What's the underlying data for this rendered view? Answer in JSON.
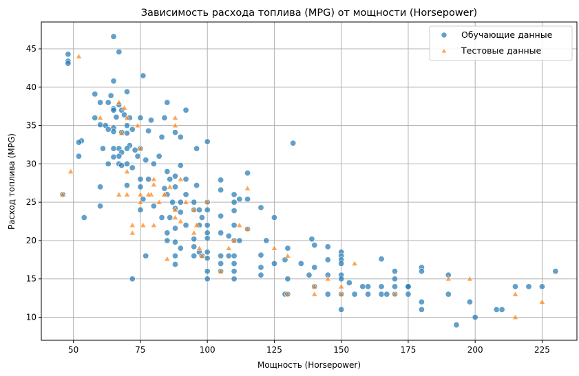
{
  "chart_data": {
    "type": "scatter",
    "title": "Зависимость расхода топлива (MPG) от мощности (Horsepower)",
    "xlabel": "Мощность (Horsepower)",
    "ylabel": "Расход топлива (MPG)",
    "xlim": [
      38,
      238
    ],
    "ylim": [
      7,
      48.5
    ],
    "xticks": [
      50,
      75,
      100,
      125,
      150,
      175,
      200,
      225
    ],
    "yticks": [
      10,
      15,
      20,
      25,
      30,
      35,
      40,
      45
    ],
    "grid": true,
    "legend": {
      "position": "top-right"
    },
    "series": [
      {
        "name": "Обучающие данные",
        "marker": "circle",
        "color": "#1f77b4",
        "points": [
          [
            48,
            44.3
          ],
          [
            48,
            43.4
          ],
          [
            48,
            43.1
          ],
          [
            65,
            46.6
          ],
          [
            67,
            44.6
          ],
          [
            76,
            41.5
          ],
          [
            65,
            40.8
          ],
          [
            70,
            39.4
          ],
          [
            58,
            39.1
          ],
          [
            64,
            38.9
          ],
          [
            63,
            38.0
          ],
          [
            60,
            38.0
          ],
          [
            85,
            38.0
          ],
          [
            67,
            37.7
          ],
          [
            68,
            37.0
          ],
          [
            92,
            37.0
          ],
          [
            65,
            37.2
          ],
          [
            65,
            37.0
          ],
          [
            71,
            36.0
          ],
          [
            58,
            36.0
          ],
          [
            69,
            36.4
          ],
          [
            75,
            36.0
          ],
          [
            84,
            36.0
          ],
          [
            66,
            36.1
          ],
          [
            62,
            35.0
          ],
          [
            70,
            35.0
          ],
          [
            79,
            35.7
          ],
          [
            65,
            34.7
          ],
          [
            60,
            35.1
          ],
          [
            68,
            34.1
          ],
          [
            72,
            34.5
          ],
          [
            78,
            34.3
          ],
          [
            88,
            34.1
          ],
          [
            63,
            34.5
          ],
          [
            65,
            34.2
          ],
          [
            70,
            34.0
          ],
          [
            83,
            33.5
          ],
          [
            90,
            33.5
          ],
          [
            53,
            33.0
          ],
          [
            52,
            32.8
          ],
          [
            71,
            32.4
          ],
          [
            100,
            32.9
          ],
          [
            75,
            32.0
          ],
          [
            70,
            32.0
          ],
          [
            67,
            32.0
          ],
          [
            61,
            32.0
          ],
          [
            65,
            32.0
          ],
          [
            68,
            31.5
          ],
          [
            73,
            31.8
          ],
          [
            96,
            32.0
          ],
          [
            67,
            31.0
          ],
          [
            74,
            31.0
          ],
          [
            82,
            31.0
          ],
          [
            52,
            31.0
          ],
          [
            65,
            30.9
          ],
          [
            67,
            30.0
          ],
          [
            63,
            30.0
          ],
          [
            70,
            30.0
          ],
          [
            77,
            30.5
          ],
          [
            80,
            30.0
          ],
          [
            68,
            29.8
          ],
          [
            85,
            29.0
          ],
          [
            90,
            29.8
          ],
          [
            72,
            29.5
          ],
          [
            75,
            28.0
          ],
          [
            88,
            28.4
          ],
          [
            78,
            28.0
          ],
          [
            86,
            28.0
          ],
          [
            92,
            28.0
          ],
          [
            105,
            27.9
          ],
          [
            115,
            28.8
          ],
          [
            60,
            27.0
          ],
          [
            70,
            27.2
          ],
          [
            75,
            27.0
          ],
          [
            84,
            26.8
          ],
          [
            88,
            27.0
          ],
          [
            96,
            27.2
          ],
          [
            105,
            26.6
          ],
          [
            110,
            26.0
          ],
          [
            112,
            25.4
          ],
          [
            92,
            26.0
          ],
          [
            85,
            26.0
          ],
          [
            76,
            25.4
          ],
          [
            90,
            25.0
          ],
          [
            87,
            25.0
          ],
          [
            95,
            25.0
          ],
          [
            100,
            25.0
          ],
          [
            110,
            25.0
          ],
          [
            115,
            25.4
          ],
          [
            80,
            24.5
          ],
          [
            60,
            24.5
          ],
          [
            75,
            24.0
          ],
          [
            88,
            24.2
          ],
          [
            95,
            24.0
          ],
          [
            97,
            24.0
          ],
          [
            100,
            24.0
          ],
          [
            105,
            23.2
          ],
          [
            110,
            23.9
          ],
          [
            120,
            24.3
          ],
          [
            125,
            23.0
          ],
          [
            54,
            23.0
          ],
          [
            83,
            23.0
          ],
          [
            86,
            23.0
          ],
          [
            90,
            23.7
          ],
          [
            98,
            23.0
          ],
          [
            100,
            22.0
          ],
          [
            110,
            22.0
          ],
          [
            115,
            21.5
          ],
          [
            85,
            21.0
          ],
          [
            88,
            21.6
          ],
          [
            92,
            22.0
          ],
          [
            97,
            22.0
          ],
          [
            100,
            21.0
          ],
          [
            105,
            21.0
          ],
          [
            108,
            20.6
          ],
          [
            95,
            20.2
          ],
          [
            100,
            20.3
          ],
          [
            110,
            20.0
          ],
          [
            112,
            20.0
          ],
          [
            122,
            20.0
          ],
          [
            85,
            20.0
          ],
          [
            88,
            19.8
          ],
          [
            90,
            19.0
          ],
          [
            95,
            19.2
          ],
          [
            97,
            18.5
          ],
          [
            100,
            18.5
          ],
          [
            105,
            18.0
          ],
          [
            108,
            18.0
          ],
          [
            110,
            18.0
          ],
          [
            120,
            18.1
          ],
          [
            130,
            19.0
          ],
          [
            139,
            20.2
          ],
          [
            140,
            19.4
          ],
          [
            145,
            19.2
          ],
          [
            150,
            18.5
          ],
          [
            150,
            18.0
          ],
          [
            77,
            18.0
          ],
          [
            88,
            18.0
          ],
          [
            95,
            18.0
          ],
          [
            98,
            18.0
          ],
          [
            100,
            17.7
          ],
          [
            105,
            17.0
          ],
          [
            110,
            17.0
          ],
          [
            120,
            16.5
          ],
          [
            125,
            17.0
          ],
          [
            129,
            17.5
          ],
          [
            135,
            17.0
          ],
          [
            140,
            16.5
          ],
          [
            145,
            17.5
          ],
          [
            150,
            17.5
          ],
          [
            150,
            17.0
          ],
          [
            165,
            17.6
          ],
          [
            88,
            16.9
          ],
          [
            100,
            16.0
          ],
          [
            105,
            16.0
          ],
          [
            110,
            16.0
          ],
          [
            120,
            15.5
          ],
          [
            130,
            15.0
          ],
          [
            138,
            15.5
          ],
          [
            145,
            15.5
          ],
          [
            150,
            15.5
          ],
          [
            150,
            15.0
          ],
          [
            153,
            14.5
          ],
          [
            158,
            14.0
          ],
          [
            160,
            14.0
          ],
          [
            165,
            14.0
          ],
          [
            170,
            15.0
          ],
          [
            175,
            14.0
          ],
          [
            180,
            16.5
          ],
          [
            180,
            16.0
          ],
          [
            190,
            15.5
          ],
          [
            100,
            15.0
          ],
          [
            110,
            15.0
          ],
          [
            72,
            15.0
          ],
          [
            140,
            14.0
          ],
          [
            145,
            13.0
          ],
          [
            150,
            13.0
          ],
          [
            155,
            13.0
          ],
          [
            160,
            13.0
          ],
          [
            165,
            13.0
          ],
          [
            167,
            13.0
          ],
          [
            170,
            14.0
          ],
          [
            170,
            16.0
          ],
          [
            170,
            13.0
          ],
          [
            175,
            13.0
          ],
          [
            175,
            14.0
          ],
          [
            180,
            12.0
          ],
          [
            180,
            11.0
          ],
          [
            190,
            13.0
          ],
          [
            193,
            9.0
          ],
          [
            198,
            12.0
          ],
          [
            200,
            10.0
          ],
          [
            208,
            11.0
          ],
          [
            210,
            11.0
          ],
          [
            215,
            14.0
          ],
          [
            220,
            14.0
          ],
          [
            225,
            14.0
          ],
          [
            230,
            16.0
          ],
          [
            150,
            11.0
          ],
          [
            129,
            13.0
          ],
          [
            130,
            13.0
          ],
          [
            132,
            32.7
          ],
          [
            46,
            26.0
          ]
        ]
      },
      {
        "name": "Тестовые данные",
        "marker": "triangle",
        "color": "#ff7f0e",
        "points": [
          [
            46,
            26.0
          ],
          [
            49,
            29.0
          ],
          [
            52,
            44.0
          ],
          [
            60,
            36.0
          ],
          [
            67,
            38.0
          ],
          [
            69,
            37.3
          ],
          [
            68,
            34.0
          ],
          [
            70,
            36.0
          ],
          [
            67,
            26.0
          ],
          [
            70,
            26.0
          ],
          [
            70,
            29.0
          ],
          [
            72,
            22.0
          ],
          [
            72,
            21.0
          ],
          [
            74,
            35.0
          ],
          [
            75,
            32.0
          ],
          [
            75,
            25.0
          ],
          [
            76,
            22.0
          ],
          [
            79,
            26.0
          ],
          [
            80,
            28.0
          ],
          [
            80,
            27.3
          ],
          [
            82,
            25.0
          ],
          [
            84,
            26.0
          ],
          [
            86,
            27.0
          ],
          [
            88,
            36.0
          ],
          [
            88,
            35.0
          ],
          [
            88,
            23.0
          ],
          [
            90,
            22.5
          ],
          [
            92,
            25.0
          ],
          [
            95,
            21.0
          ],
          [
            96,
            22.0
          ],
          [
            97,
            19.0
          ],
          [
            98,
            18.0
          ],
          [
            100,
            25.0
          ],
          [
            105,
            16.0
          ],
          [
            108,
            19.0
          ],
          [
            110,
            20.0
          ],
          [
            112,
            22.0
          ],
          [
            115,
            21.5
          ],
          [
            115,
            26.8
          ],
          [
            125,
            19.0
          ],
          [
            130,
            18.0
          ],
          [
            130,
            13.0
          ],
          [
            140,
            14.0
          ],
          [
            140,
            13.0
          ],
          [
            145,
            15.0
          ],
          [
            150,
            14.0
          ],
          [
            150,
            13.0
          ],
          [
            155,
            17.0
          ],
          [
            170,
            13.0
          ],
          [
            190,
            15.0
          ],
          [
            198,
            15.0
          ],
          [
            215,
            13.0
          ],
          [
            215,
            10.0
          ],
          [
            225,
            12.0
          ],
          [
            75,
            26.0
          ],
          [
            90,
            28.0
          ],
          [
            85,
            17.6
          ],
          [
            95,
            24.0
          ],
          [
            88,
            24.0
          ],
          [
            80,
            22.0
          ],
          [
            84,
            26.0
          ],
          [
            78,
            26.0
          ]
        ]
      }
    ]
  }
}
